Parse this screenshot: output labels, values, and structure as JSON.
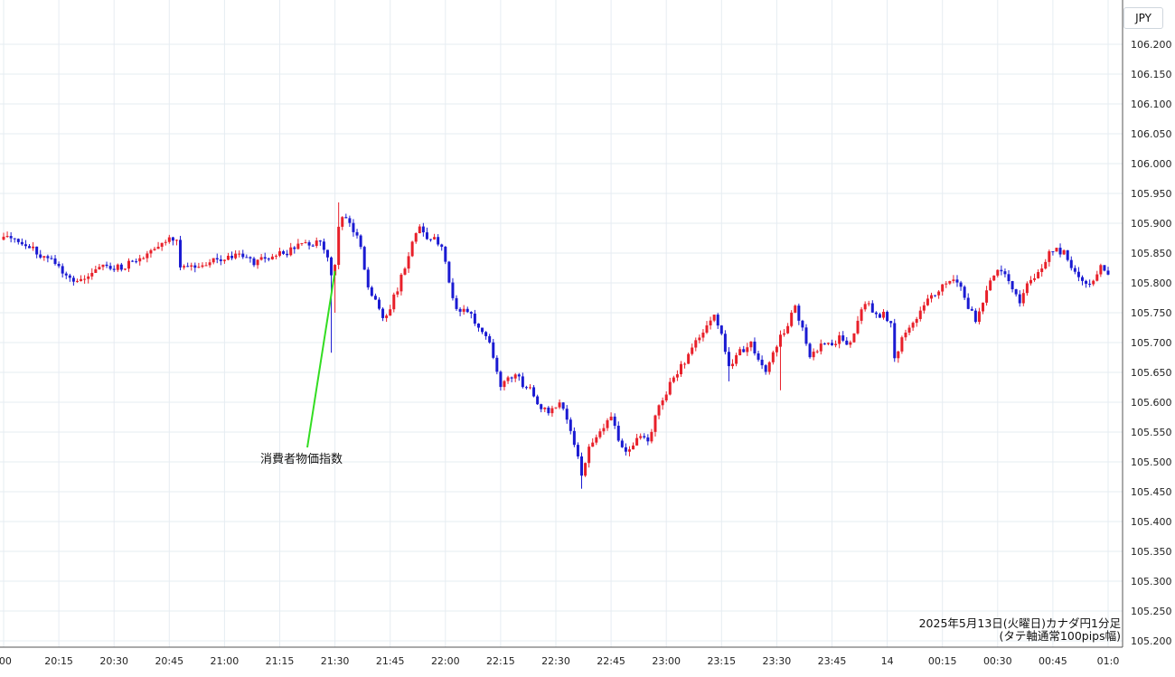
{
  "chart_data": {
    "type": "candlestick",
    "currency_label": "JPY",
    "y_ticks": [
      "106.200",
      "106.150",
      "106.100",
      "106.050",
      "106.000",
      "105.950",
      "105.900",
      "105.850",
      "105.800",
      "105.750",
      "105.700",
      "105.650",
      "105.600",
      "105.550",
      "105.500",
      "105.450",
      "105.400",
      "105.350",
      "105.300",
      "105.250",
      "105.200"
    ],
    "ylim": [
      105.2,
      106.2
    ],
    "x_ticks": [
      ":00",
      "20:15",
      "20:30",
      "20:45",
      "21:00",
      "21:15",
      "21:30",
      "21:45",
      "22:00",
      "22:15",
      "22:30",
      "22:45",
      "23:00",
      "23:15",
      "23:30",
      "23:45",
      "14",
      "00:15",
      "00:30",
      "00:45",
      "01:0"
    ],
    "x_range_label": "2025-05-13 20:00 to 2025-05-14 01:00, 1-minute candles",
    "caption_line1": "2025年5月13日(火曜日)カナダ円1分足",
    "caption_line2": "(タテ軸通常100pips幅)",
    "annotation": {
      "text": "消費者物価指数",
      "time": "21:30",
      "price": 105.82
    },
    "up_color": "#e8202a",
    "down_color": "#1a1ad2",
    "annotation_line_color": "#33dd22",
    "anchors": [
      [
        0,
        105.88
      ],
      [
        4,
        105.87
      ],
      [
        8,
        105.855
      ],
      [
        12,
        105.84
      ],
      [
        15,
        105.825
      ],
      [
        18,
        105.81
      ],
      [
        20,
        105.8
      ],
      [
        22,
        105.805
      ],
      [
        25,
        105.825
      ],
      [
        28,
        105.83
      ],
      [
        32,
        105.825
      ],
      [
        35,
        105.835
      ],
      [
        39,
        105.845
      ],
      [
        42,
        105.86
      ],
      [
        45,
        105.875
      ],
      [
        47,
        105.87
      ],
      [
        48,
        105.82
      ],
      [
        52,
        105.83
      ],
      [
        56,
        105.835
      ],
      [
        60,
        105.84
      ],
      [
        64,
        105.845
      ],
      [
        68,
        105.835
      ],
      [
        72,
        105.84
      ],
      [
        76,
        105.85
      ],
      [
        80,
        105.86
      ],
      [
        84,
        105.865
      ],
      [
        86,
        105.87
      ],
      [
        88,
        105.84
      ],
      [
        89,
        105.81
      ],
      [
        90,
        105.83
      ],
      [
        91,
        105.9
      ],
      [
        93,
        105.91
      ],
      [
        95,
        105.89
      ],
      [
        97,
        105.86
      ],
      [
        99,
        105.79
      ],
      [
        101,
        105.77
      ],
      [
        103,
        105.74
      ],
      [
        105,
        105.76
      ],
      [
        107,
        105.79
      ],
      [
        109,
        105.83
      ],
      [
        111,
        105.87
      ],
      [
        113,
        105.89
      ],
      [
        115,
        105.87
      ],
      [
        117,
        105.88
      ],
      [
        119,
        105.86
      ],
      [
        121,
        105.8
      ],
      [
        123,
        105.76
      ],
      [
        126,
        105.75
      ],
      [
        129,
        105.73
      ],
      [
        131,
        105.71
      ],
      [
        133,
        105.68
      ],
      [
        135,
        105.62
      ],
      [
        137,
        105.64
      ],
      [
        139,
        105.65
      ],
      [
        141,
        105.63
      ],
      [
        143,
        105.62
      ],
      [
        145,
        105.6
      ],
      [
        148,
        105.58
      ],
      [
        151,
        105.6
      ],
      [
        153,
        105.57
      ],
      [
        155,
        105.53
      ],
      [
        157,
        105.48
      ],
      [
        159,
        105.52
      ],
      [
        161,
        105.54
      ],
      [
        163,
        105.56
      ],
      [
        165,
        105.58
      ],
      [
        167,
        105.54
      ],
      [
        169,
        105.52
      ],
      [
        171,
        105.53
      ],
      [
        173,
        105.545
      ],
      [
        175,
        105.53
      ],
      [
        177,
        105.58
      ],
      [
        179,
        105.6
      ],
      [
        181,
        105.63
      ],
      [
        183,
        105.65
      ],
      [
        185,
        105.67
      ],
      [
        187,
        105.69
      ],
      [
        189,
        105.71
      ],
      [
        191,
        105.73
      ],
      [
        193,
        105.745
      ],
      [
        195,
        105.72
      ],
      [
        197,
        105.66
      ],
      [
        199,
        105.68
      ],
      [
        201,
        105.69
      ],
      [
        203,
        105.7
      ],
      [
        205,
        105.67
      ],
      [
        207,
        105.65
      ],
      [
        209,
        105.68
      ],
      [
        211,
        105.71
      ],
      [
        213,
        105.73
      ],
      [
        215,
        105.76
      ],
      [
        217,
        105.72
      ],
      [
        219,
        105.68
      ],
      [
        221,
        105.69
      ],
      [
        223,
        105.7
      ],
      [
        225,
        105.695
      ],
      [
        227,
        105.71
      ],
      [
        229,
        105.7
      ],
      [
        231,
        105.71
      ],
      [
        233,
        105.76
      ],
      [
        235,
        105.765
      ],
      [
        237,
        105.745
      ],
      [
        239,
        105.75
      ],
      [
        241,
        105.73
      ],
      [
        242,
        105.67
      ],
      [
        244,
        105.71
      ],
      [
        246,
        105.73
      ],
      [
        248,
        105.74
      ],
      [
        250,
        105.76
      ],
      [
        252,
        105.78
      ],
      [
        254,
        105.79
      ],
      [
        256,
        105.8
      ],
      [
        258,
        105.8
      ],
      [
        260,
        105.79
      ],
      [
        262,
        105.76
      ],
      [
        264,
        105.74
      ],
      [
        266,
        105.77
      ],
      [
        268,
        105.81
      ],
      [
        270,
        105.82
      ],
      [
        272,
        105.81
      ],
      [
        274,
        105.79
      ],
      [
        276,
        105.76
      ],
      [
        278,
        105.8
      ],
      [
        280,
        105.81
      ],
      [
        282,
        105.82
      ],
      [
        284,
        105.85
      ],
      [
        286,
        105.855
      ],
      [
        288,
        105.85
      ],
      [
        290,
        105.83
      ],
      [
        292,
        105.81
      ],
      [
        294,
        105.8
      ],
      [
        296,
        105.8
      ],
      [
        298,
        105.83
      ],
      [
        300,
        105.81
      ]
    ]
  }
}
